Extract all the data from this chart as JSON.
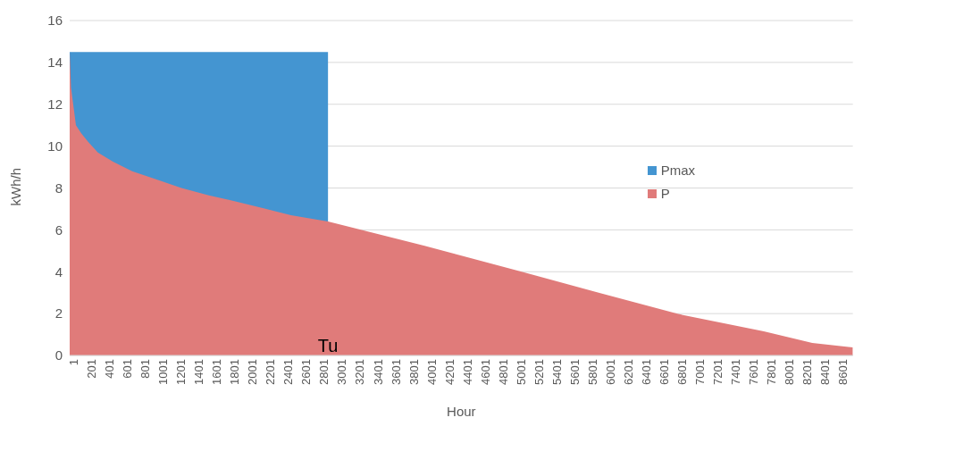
{
  "chart_data": {
    "type": "area",
    "xlabel": "Hour",
    "ylabel": "kWh/h",
    "series": [
      {
        "name": "Pmax",
        "color": "#4495d1",
        "x": [
          1,
          2890
        ],
        "values": [
          14.5,
          14.5
        ]
      },
      {
        "name": "P",
        "color": "#e07b7a",
        "x": [
          1,
          16,
          71,
          132,
          209,
          316,
          485,
          700,
          945,
          1251,
          1557,
          1864,
          2170,
          2476,
          2890,
          3971,
          5056,
          5908,
          6797,
          7764,
          8306,
          8712,
          8760
        ],
        "values": [
          14.5,
          12.8,
          11.0,
          10.6,
          10.2,
          9.7,
          9.26,
          8.8,
          8.45,
          8.0,
          7.65,
          7.35,
          7.03,
          6.7,
          6.4,
          5.24,
          4.0,
          3.01,
          1.99,
          1.15,
          0.6,
          0.41,
          0.38
        ]
      }
    ],
    "xlim": [
      1,
      8760
    ],
    "xticks": [
      1,
      201,
      401,
      601,
      801,
      1001,
      1201,
      1401,
      1601,
      1801,
      2001,
      2201,
      2401,
      2601,
      2801,
      3001,
      3201,
      3401,
      3601,
      3801,
      4001,
      4201,
      4401,
      4601,
      4801,
      5001,
      5201,
      5401,
      5601,
      5801,
      6001,
      6201,
      6401,
      6601,
      6801,
      7001,
      7201,
      7401,
      7601,
      7801,
      8001,
      8201,
      8401,
      8601
    ],
    "ylim": [
      0,
      16
    ],
    "yticks": [
      0,
      2,
      4,
      6,
      8,
      10,
      12,
      14,
      16
    ],
    "grid": "y",
    "legend": "right",
    "annotations": [
      {
        "text": "Tu",
        "x": 2890,
        "y": 0
      }
    ]
  }
}
